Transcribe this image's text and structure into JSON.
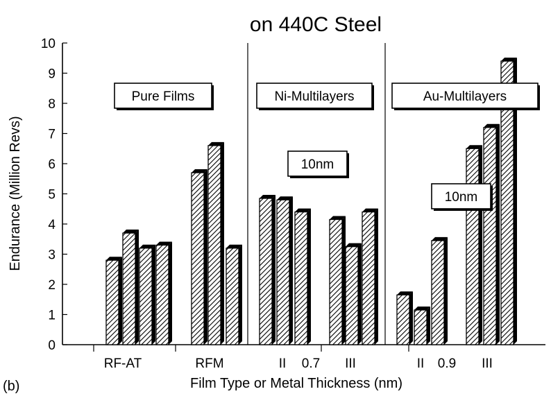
{
  "chart_data": {
    "type": "bar",
    "title": "on 440C Steel",
    "panel_label": "(b)",
    "xlabel": "Film Type or Metal Thickness (nm)",
    "ylabel": "Endurance (Million Revs)",
    "ylim": [
      0,
      10
    ],
    "yticks": [
      "0",
      "1",
      "2",
      "3",
      "4",
      "5",
      "6",
      "7",
      "8",
      "9",
      "10"
    ],
    "grid": false,
    "sections": [
      {
        "label": "Pure Films",
        "groups": [
          {
            "label": "RF-AT",
            "values": [
              2.8,
              3.7,
              3.2,
              3.3
            ]
          },
          {
            "label": "RFM",
            "values": [
              5.7,
              6.6,
              3.2
            ]
          }
        ]
      },
      {
        "label": "Ni-Multilayers",
        "note": "10nm",
        "groups": [
          {
            "label": "II",
            "values": [
              4.85,
              4.8,
              4.4
            ]
          },
          {
            "label": "0.7",
            "values": []
          },
          {
            "label": "III",
            "values": [
              4.15,
              3.25,
              4.4
            ]
          }
        ]
      },
      {
        "label": "Au-Multilayers",
        "note": "10nm",
        "groups": [
          {
            "label": "II",
            "values": [
              1.65,
              1.15,
              3.45
            ]
          },
          {
            "label": "0.9",
            "values": []
          },
          {
            "label": "III",
            "values": [
              6.5,
              7.2,
              9.4
            ]
          }
        ]
      }
    ]
  }
}
